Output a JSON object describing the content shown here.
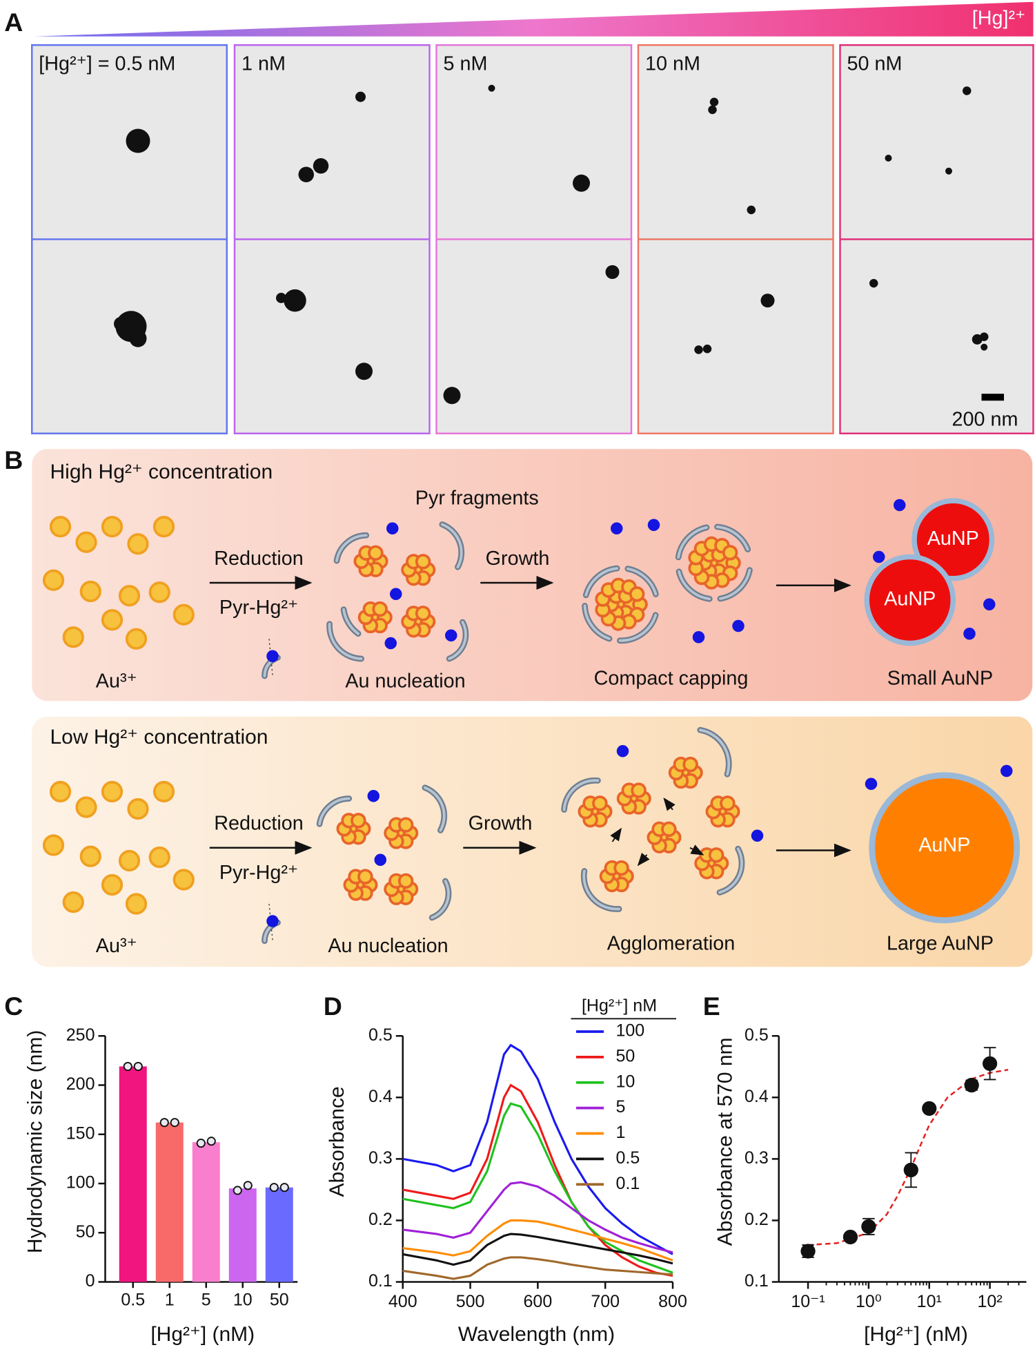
{
  "panel_labels": [
    "A",
    "B",
    "C",
    "D",
    "E"
  ],
  "panel_a": {
    "gradient_label": "[Hg]²⁺",
    "columns": [
      "[Hg²⁺] = 0.5 nM",
      "1 nM",
      "5 nM",
      "10 nM",
      "50 nM"
    ],
    "scale_bar": "200 nm"
  },
  "panel_b": {
    "high": {
      "title": "High Hg²⁺ concentration",
      "fragments_label": "Pyr fragments",
      "reduction": "Reduction",
      "pyr_hg": "Pyr-Hg²⁺",
      "growth": "Growth",
      "au3": "Au³⁺",
      "nucleation": "Au nucleation",
      "stage3": "Compact capping",
      "product": "Small AuNP",
      "particle_labels": [
        "AuNP",
        "AuNP"
      ]
    },
    "low": {
      "title": "Low Hg²⁺ concentration",
      "reduction": "Reduction",
      "pyr_hg": "Pyr-Hg²⁺",
      "growth": "Growth",
      "au3": "Au³⁺",
      "nucleation": "Au nucleation",
      "stage3": "Agglomeration",
      "product": "Large AuNP",
      "particle_labels": [
        "AuNP"
      ]
    }
  },
  "chart_data": [
    {
      "type": "bar",
      "x_label": "[Hg²⁺] (nM)",
      "y_label": "Hydrodynamic size (nm)",
      "categories": [
        "0.5",
        "1",
        "5",
        "10",
        "50"
      ],
      "values": [
        219,
        162,
        142,
        95,
        96
      ],
      "colors": [
        "#f0157f",
        "#f86a6a",
        "#f97fce",
        "#cc66ee",
        "#6a6aff"
      ],
      "points": [
        [
          219,
          219
        ],
        [
          162,
          162
        ],
        [
          141,
          143
        ],
        [
          93,
          98
        ],
        [
          96,
          96
        ]
      ],
      "ylim": [
        0,
        250
      ],
      "yticks": [
        0,
        50,
        100,
        150,
        200,
        250
      ]
    },
    {
      "type": "line",
      "x_label": "Wavelength (nm)",
      "y_label": "Absorbance",
      "legend_title": "[Hg²⁺] nM",
      "x": [
        400,
        450,
        475,
        500,
        525,
        550,
        560,
        575,
        600,
        625,
        650,
        675,
        700,
        725,
        750,
        775,
        800
      ],
      "series": [
        {
          "name": "100",
          "color": "#1a1aee",
          "values": [
            0.3,
            0.29,
            0.28,
            0.29,
            0.36,
            0.47,
            0.485,
            0.475,
            0.43,
            0.36,
            0.3,
            0.255,
            0.22,
            0.195,
            0.175,
            0.16,
            0.145
          ]
        },
        {
          "name": "50",
          "color": "#ee1a1a",
          "values": [
            0.25,
            0.24,
            0.235,
            0.245,
            0.3,
            0.4,
            0.42,
            0.41,
            0.36,
            0.29,
            0.23,
            0.19,
            0.16,
            0.14,
            0.125,
            0.115,
            0.11
          ]
        },
        {
          "name": "10",
          "color": "#1ec21e",
          "values": [
            0.235,
            0.225,
            0.22,
            0.23,
            0.28,
            0.37,
            0.39,
            0.385,
            0.34,
            0.28,
            0.23,
            0.19,
            0.165,
            0.15,
            0.135,
            0.125,
            0.115
          ]
        },
        {
          "name": "5",
          "color": "#a020d8",
          "values": [
            0.185,
            0.178,
            0.172,
            0.18,
            0.215,
            0.25,
            0.26,
            0.262,
            0.255,
            0.24,
            0.22,
            0.2,
            0.185,
            0.172,
            0.163,
            0.155,
            0.148
          ]
        },
        {
          "name": "1",
          "color": "#ff8c00",
          "values": [
            0.155,
            0.148,
            0.143,
            0.15,
            0.175,
            0.195,
            0.2,
            0.2,
            0.198,
            0.192,
            0.185,
            0.178,
            0.17,
            0.163,
            0.155,
            0.145,
            0.135
          ]
        },
        {
          "name": "0.5",
          "color": "#111111",
          "values": [
            0.145,
            0.135,
            0.128,
            0.135,
            0.16,
            0.175,
            0.178,
            0.177,
            0.173,
            0.168,
            0.163,
            0.158,
            0.153,
            0.148,
            0.143,
            0.137,
            0.13
          ]
        },
        {
          "name": "0.1",
          "color": "#a0682a",
          "values": [
            0.118,
            0.11,
            0.105,
            0.11,
            0.128,
            0.138,
            0.14,
            0.14,
            0.137,
            0.133,
            0.128,
            0.124,
            0.12,
            0.118,
            0.116,
            0.114,
            0.112
          ]
        }
      ],
      "xlim": [
        400,
        800
      ],
      "xticks": [
        400,
        500,
        600,
        700,
        800
      ],
      "ylim": [
        0.1,
        0.5
      ],
      "yticks": [
        0.1,
        0.2,
        0.3,
        0.4,
        0.5
      ]
    },
    {
      "type": "scatter",
      "x_label": "[Hg²⁺] (nM)",
      "y_label": "Absorbance at 570 nm",
      "log_x": true,
      "x": [
        0.1,
        0.5,
        1,
        5,
        10,
        50,
        100
      ],
      "values": [
        0.15,
        0.173,
        0.19,
        0.282,
        0.382,
        0.42,
        0.455
      ],
      "errors": [
        0.01,
        0.005,
        0.013,
        0.028,
        0.004,
        0.008,
        0.026
      ],
      "color": "#111111",
      "fit": {
        "color": "#e32020",
        "x": [
          0.1,
          0.3,
          1,
          2,
          3,
          5,
          7,
          10,
          20,
          50,
          100,
          200
        ],
        "values": [
          0.16,
          0.163,
          0.18,
          0.21,
          0.24,
          0.285,
          0.32,
          0.355,
          0.4,
          0.43,
          0.44,
          0.445
        ]
      },
      "xlim": [
        0.033,
        400
      ],
      "xticks": [
        {
          "value": 0.1,
          "label": "10⁻¹"
        },
        {
          "value": 1,
          "label": "10⁰"
        },
        {
          "value": 10,
          "label": "10¹"
        },
        {
          "value": 100,
          "label": "10²"
        }
      ],
      "ylim": [
        0.1,
        0.5
      ],
      "yticks": [
        0.1,
        0.2,
        0.3,
        0.4,
        0.5
      ]
    }
  ]
}
